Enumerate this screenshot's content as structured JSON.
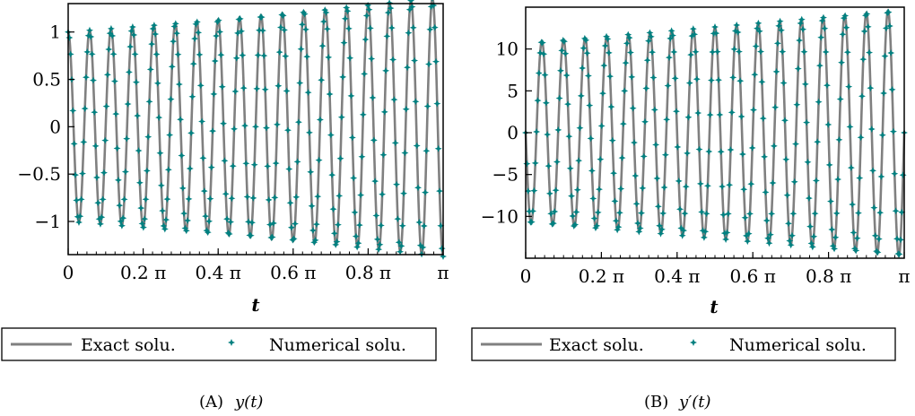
{
  "chart_data": [
    {
      "type": "line",
      "caption_tag": "(A)",
      "caption_expr": "y(t)",
      "xlabel": "t",
      "ylabel": "",
      "xlim": [
        0,
        3.1416
      ],
      "ylim": [
        -1.35,
        1.3
      ],
      "xticks": [
        {
          "value": 0,
          "label": "0"
        },
        {
          "value": 0.6283,
          "label": "0.2 π"
        },
        {
          "value": 1.2566,
          "label": "0.4 π"
        },
        {
          "value": 1.885,
          "label": "0.6 π"
        },
        {
          "value": 2.5133,
          "label": "0.8 π"
        },
        {
          "value": 3.1416,
          "label": "π"
        }
      ],
      "yticks": [
        {
          "value": 1,
          "label": "1"
        },
        {
          "value": 0.5,
          "label": "0.5"
        },
        {
          "value": 0,
          "label": "0"
        },
        {
          "value": -0.5,
          "label": "−0.5"
        },
        {
          "value": -1,
          "label": "−1"
        }
      ],
      "function": {
        "kind": "cos",
        "omega": 35,
        "growth": 0.1
      },
      "series": [
        {
          "name": "Exact solu.",
          "style": "line",
          "color": "#808080"
        },
        {
          "name": "Numerical solu.",
          "style": "star",
          "color": "#008080"
        }
      ],
      "legend_position": "bottom"
    },
    {
      "type": "line",
      "caption_tag": "(B)",
      "caption_expr": "y′(t)",
      "xlabel": "t",
      "ylabel": "",
      "xlim": [
        0,
        3.1416
      ],
      "ylim": [
        -15,
        15
      ],
      "xticks": [
        {
          "value": 0,
          "label": "0"
        },
        {
          "value": 0.6283,
          "label": "0.2 π"
        },
        {
          "value": 1.2566,
          "label": "0.4 π"
        },
        {
          "value": 1.885,
          "label": "0.6 π"
        },
        {
          "value": 2.5133,
          "label": "0.8 π"
        },
        {
          "value": 3.1416,
          "label": "π"
        }
      ],
      "yticks": [
        {
          "value": 10,
          "label": "10"
        },
        {
          "value": 5,
          "label": "5"
        },
        {
          "value": 0,
          "label": "0"
        },
        {
          "value": -5,
          "label": "−5"
        },
        {
          "value": -10,
          "label": "−10"
        }
      ],
      "function": {
        "kind": "neg_sin",
        "amplitude": 10.8,
        "omega": 35,
        "growth": 0.1
      },
      "series": [
        {
          "name": "Exact solu.",
          "style": "line",
          "color": "#808080"
        },
        {
          "name": "Numerical solu.",
          "style": "star",
          "color": "#008080"
        }
      ],
      "legend_position": "bottom"
    }
  ]
}
